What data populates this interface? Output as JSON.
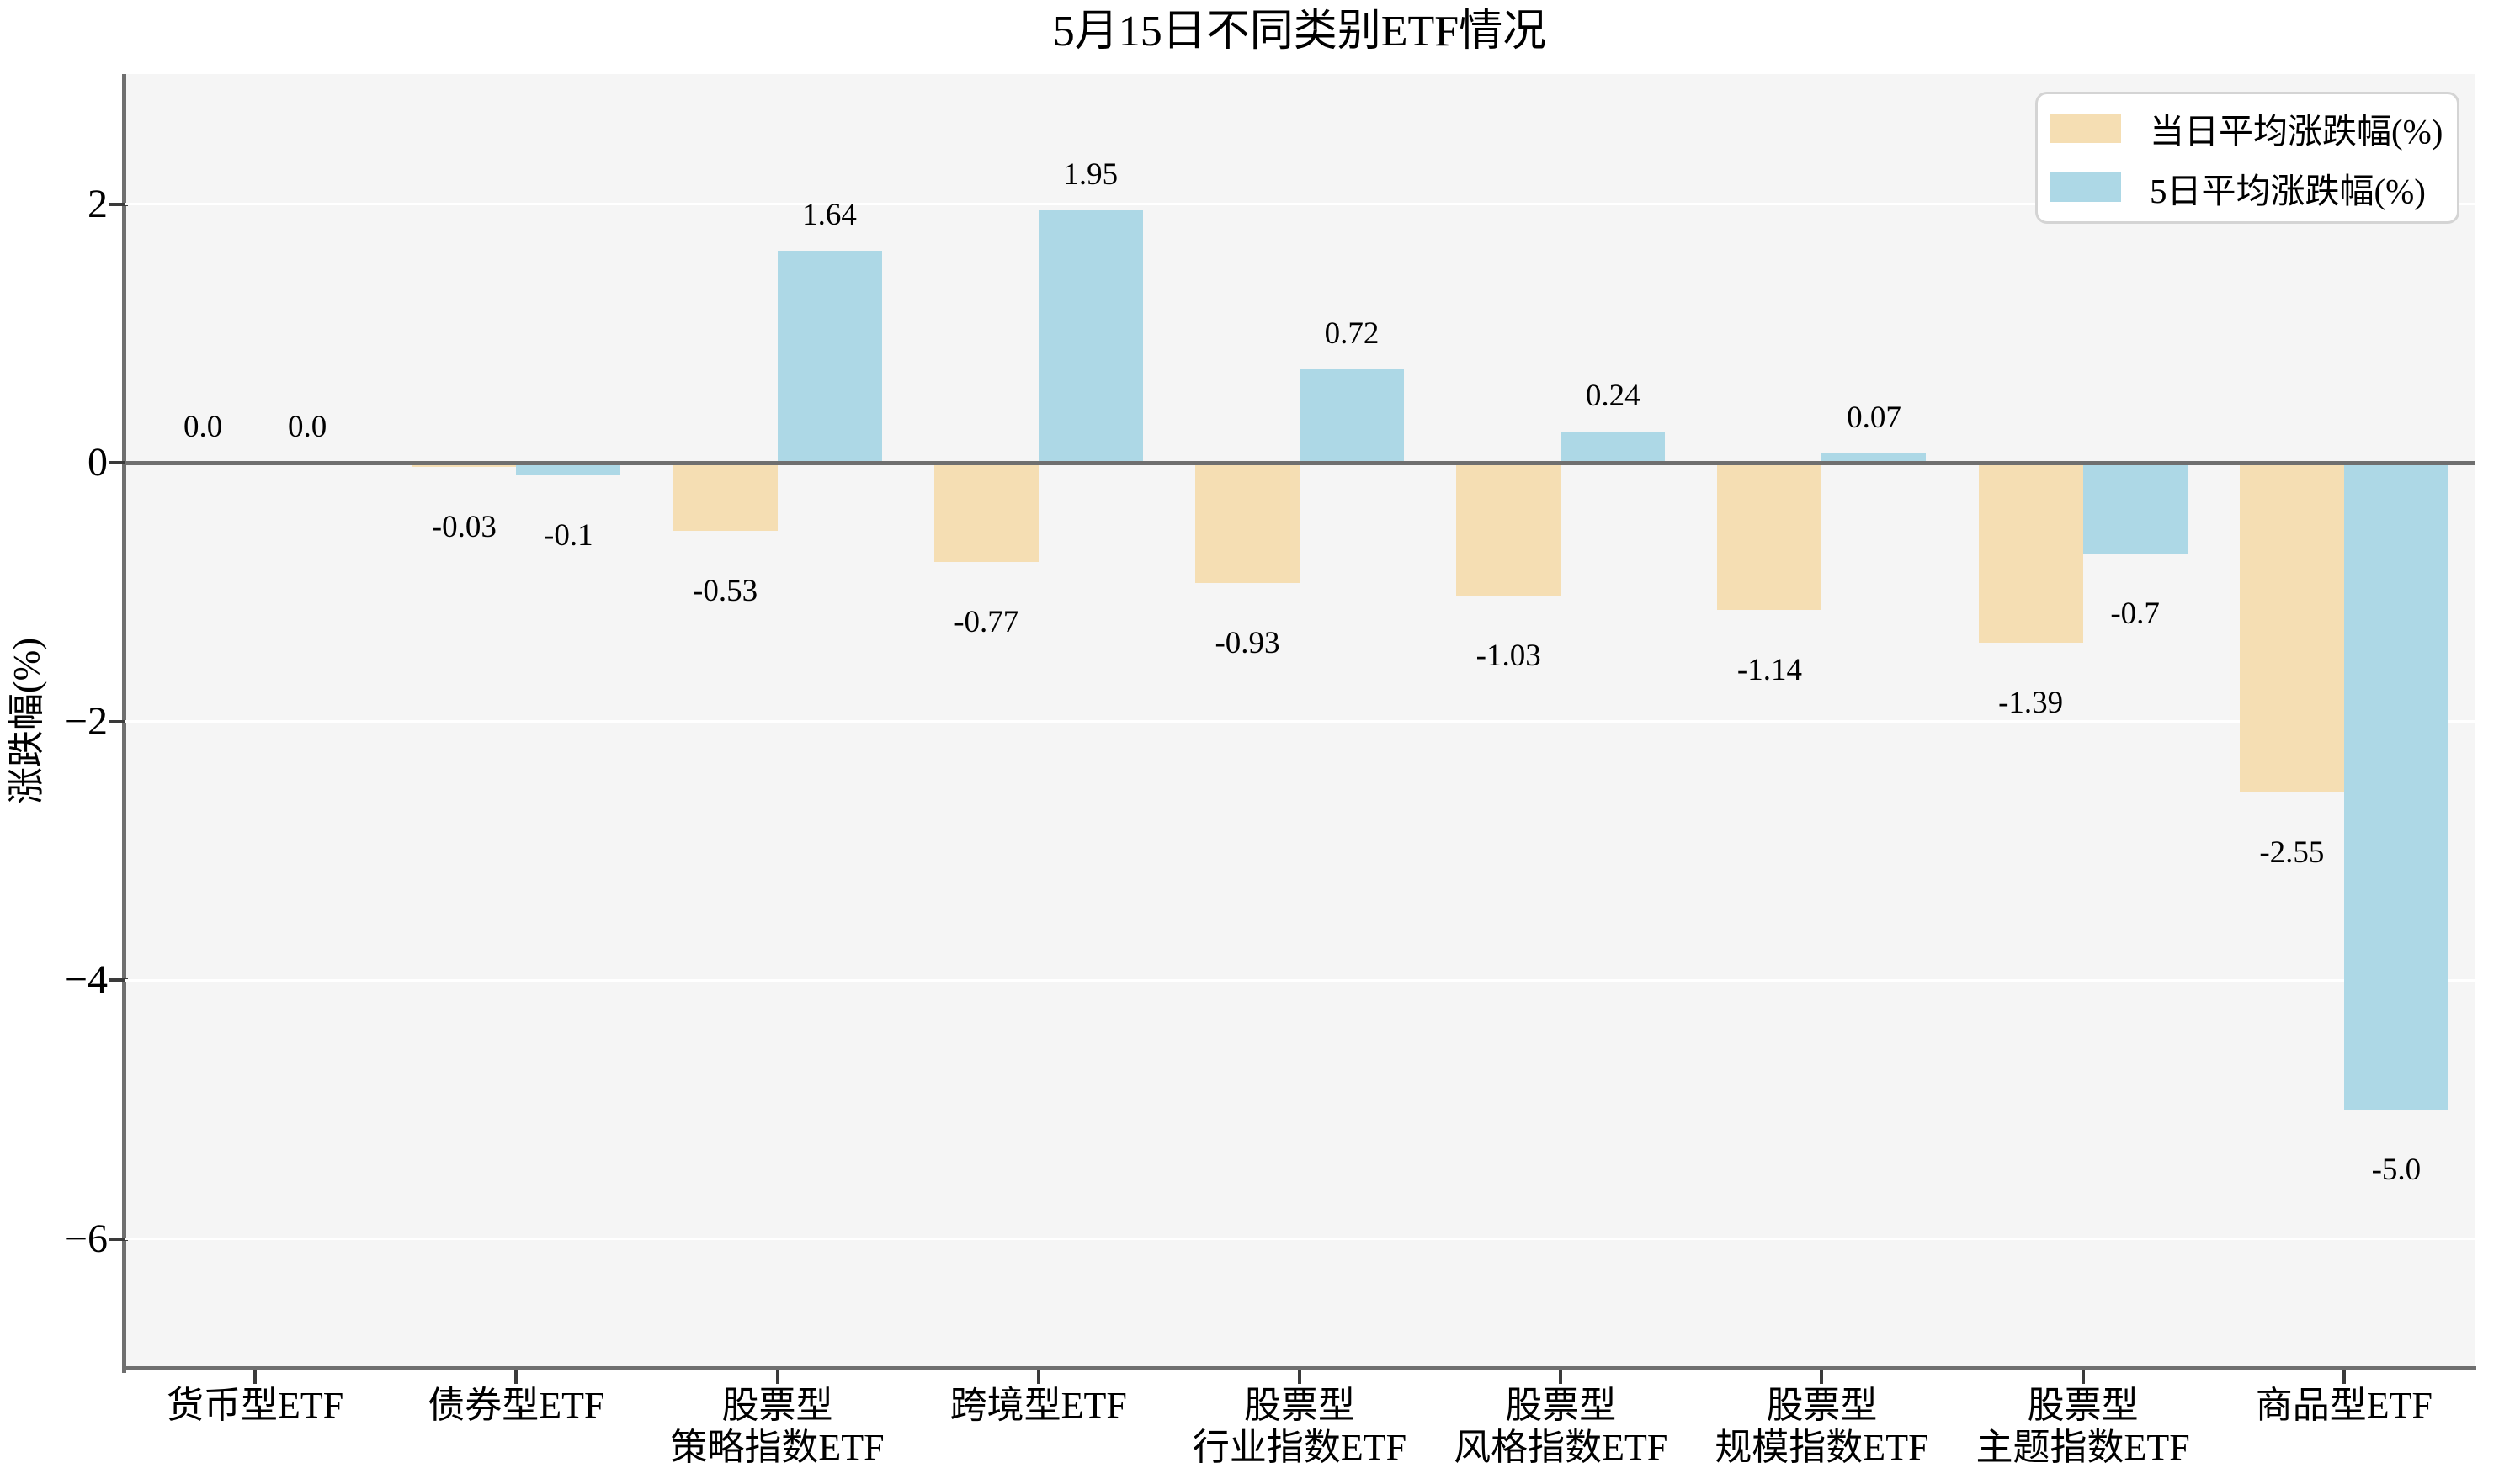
{
  "title": "5月15日不同类别ETF情况",
  "chart_data": {
    "type": "bar",
    "title": "5月15日不同类别ETF情况",
    "xlabel": "",
    "ylabel": "涨跌幅(%)",
    "ylim": [
      -7,
      3
    ],
    "yticks": [
      {
        "value": 2,
        "label": "2"
      },
      {
        "value": 0,
        "label": "0"
      },
      {
        "value": -2,
        "label": "−2"
      },
      {
        "value": -4,
        "label": "−4"
      },
      {
        "value": -6,
        "label": "−6"
      }
    ],
    "grid": "horizontal-white-lines",
    "plot_background": "#F5F5F5",
    "figure_background": "#FFFFFF",
    "legend_position": "upper-right",
    "categories": [
      "货币型ETF",
      "债券型ETF",
      "股票型\n策略指数ETF",
      "跨境型ETF",
      "股票型\n行业指数ETF",
      "股票型\n风格指数ETF",
      "股票型\n规模指数ETF",
      "股票型\n主题指数ETF",
      "商品型ETF"
    ],
    "series": [
      {
        "name": "当日平均涨跌幅(%)",
        "color": "#F5DEB3",
        "values": [
          0.0,
          -0.03,
          -0.53,
          -0.77,
          -0.93,
          -1.03,
          -1.14,
          -1.39,
          -2.55
        ],
        "labels": [
          "0.0",
          "-0.03",
          "-0.53",
          "-0.77",
          "-0.93",
          "-1.03",
          "-1.14",
          "-1.39",
          "-2.55"
        ]
      },
      {
        "name": "5日平均涨跌幅(%)",
        "color": "#ADD8E6",
        "values": [
          0.0,
          -0.1,
          1.64,
          1.95,
          0.72,
          0.24,
          0.07,
          -0.7,
          -5.0
        ],
        "labels": [
          "0.0",
          "-0.1",
          "1.64",
          "1.95",
          "0.72",
          "0.24",
          "0.07",
          "-0.7",
          "-5.0"
        ]
      }
    ],
    "axis_colors": {
      "spine": "#6f6f6f",
      "zero_line": "#6f6f6f",
      "tick": "#3a3a3a",
      "gridline": "#ffffff",
      "text": "#000000"
    }
  },
  "legend": {
    "items": [
      {
        "label": "当日平均涨跌幅(%)",
        "color": "#F5DEB3"
      },
      {
        "label": "5日平均涨跌幅(%)",
        "color": "#ADD8E6"
      }
    ]
  }
}
